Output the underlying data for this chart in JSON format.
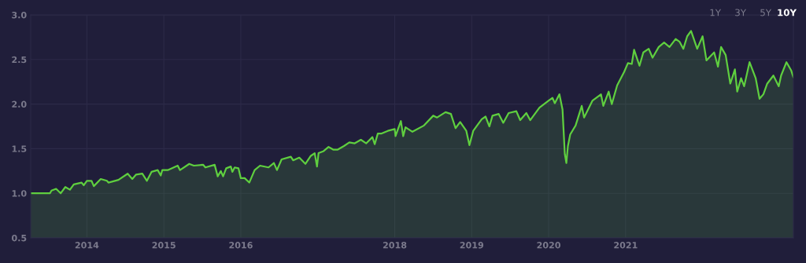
{
  "chart_data": {
    "type": "area",
    "x": [
      2013.27,
      2013.52,
      2013.54,
      2013.6,
      2013.66,
      2013.72,
      2013.78,
      2013.83,
      2013.93,
      2013.96,
      2014.0,
      2014.06,
      2014.09,
      2014.18,
      2014.26,
      2014.28,
      2014.41,
      2014.53,
      2014.59,
      2014.64,
      2014.72,
      2014.78,
      2014.84,
      2014.92,
      2014.96,
      2014.98,
      2015.05,
      2015.18,
      2015.21,
      2015.33,
      2015.39,
      2015.51,
      2015.54,
      2015.66,
      2015.7,
      2015.74,
      2015.77,
      2015.81,
      2015.87,
      2015.89,
      2015.92,
      2015.97,
      2016.0,
      2016.05,
      2016.11,
      2016.18,
      2016.25,
      2016.36,
      2016.43,
      2016.47,
      2016.53,
      2016.65,
      2016.68,
      2016.76,
      2016.84,
      2016.91,
      2016.96,
      2016.99,
      2017.01,
      2017.07,
      2017.14,
      2017.2,
      2017.26,
      2017.34,
      2017.41,
      2017.48,
      2017.56,
      2017.63,
      2017.71,
      2017.74,
      2017.78,
      2017.83,
      2017.91,
      2018.0,
      2018.01,
      2018.08,
      2018.11,
      2018.14,
      2018.23,
      2018.38,
      2018.5,
      2018.55,
      2018.66,
      2018.73,
      2018.79,
      2018.85,
      2018.93,
      2018.97,
      2019.02,
      2019.13,
      2019.18,
      2019.23,
      2019.27,
      2019.35,
      2019.41,
      2019.48,
      2019.58,
      2019.63,
      2019.71,
      2019.76,
      2019.88,
      2020.0,
      2020.05,
      2020.08,
      2020.14,
      2020.18,
      2020.21,
      2020.23,
      2020.25,
      2020.28,
      2020.35,
      2020.43,
      2020.46,
      2020.57,
      2020.68,
      2020.71,
      2020.78,
      2020.82,
      2020.89,
      2020.98,
      2021.03,
      2021.08,
      2021.11,
      2021.18,
      2021.23,
      2021.3,
      2021.35,
      2021.43,
      2021.5,
      2021.57,
      2021.65,
      2021.7,
      2021.75,
      2021.8,
      2021.85,
      2021.93,
      2022.0,
      2022.05,
      2022.15,
      2022.2,
      2022.24,
      2022.3,
      2022.36,
      2022.42,
      2022.45,
      2022.5,
      2022.54,
      2022.61,
      2022.69,
      2022.74,
      2022.79,
      2022.84,
      2022.92,
      2022.99,
      2023.02,
      2023.09,
      2023.15,
      2023.18
    ],
    "series": [
      {
        "color": "#5fcf3f",
        "values": [
          1.0,
          1.0,
          1.03,
          1.05,
          1.0,
          1.07,
          1.04,
          1.1,
          1.12,
          1.09,
          1.14,
          1.14,
          1.08,
          1.16,
          1.14,
          1.12,
          1.15,
          1.22,
          1.16,
          1.21,
          1.22,
          1.14,
          1.24,
          1.26,
          1.2,
          1.26,
          1.26,
          1.31,
          1.26,
          1.33,
          1.31,
          1.32,
          1.29,
          1.32,
          1.19,
          1.25,
          1.19,
          1.28,
          1.3,
          1.24,
          1.29,
          1.28,
          1.17,
          1.17,
          1.12,
          1.26,
          1.31,
          1.29,
          1.34,
          1.26,
          1.38,
          1.41,
          1.37,
          1.4,
          1.33,
          1.42,
          1.45,
          1.3,
          1.45,
          1.47,
          1.52,
          1.49,
          1.49,
          1.53,
          1.57,
          1.56,
          1.6,
          1.56,
          1.63,
          1.55,
          1.67,
          1.67,
          1.7,
          1.72,
          1.64,
          1.81,
          1.64,
          1.74,
          1.69,
          1.76,
          1.87,
          1.85,
          1.91,
          1.89,
          1.73,
          1.8,
          1.7,
          1.54,
          1.7,
          1.83,
          1.86,
          1.75,
          1.87,
          1.89,
          1.79,
          1.9,
          1.92,
          1.82,
          1.9,
          1.82,
          1.96,
          2.04,
          2.07,
          2.01,
          2.11,
          1.94,
          1.44,
          1.34,
          1.53,
          1.66,
          1.76,
          1.98,
          1.85,
          2.04,
          2.11,
          1.98,
          2.14,
          2.0,
          2.21,
          2.36,
          2.46,
          2.45,
          2.61,
          2.43,
          2.58,
          2.62,
          2.52,
          2.64,
          2.69,
          2.64,
          2.73,
          2.7,
          2.62,
          2.76,
          2.82,
          2.62,
          2.76,
          2.49,
          2.58,
          2.42,
          2.64,
          2.55,
          2.23,
          2.39,
          2.14,
          2.29,
          2.2,
          2.47,
          2.29,
          2.06,
          2.11,
          2.23,
          2.32,
          2.2,
          2.32,
          2.47,
          2.38,
          2.3
        ]
      }
    ],
    "xlim": [
      2013.27,
      2023.18
    ],
    "xticks": [
      2014,
      2015,
      2016,
      2018,
      2019,
      2020,
      2021
    ],
    "ylim": [
      0.5,
      3.0
    ],
    "yticks": [
      0.5,
      {
        "value": 1,
        "label": "1.0"
      },
      1.5,
      {
        "value": 2,
        "label": "2.0"
      },
      2.5,
      {
        "value": 3,
        "label": "3.0"
      }
    ],
    "grid": true,
    "line_style": "solid",
    "annotations": [
      "1Y",
      "3Y",
      "5Y",
      "10Y"
    ]
  }
}
